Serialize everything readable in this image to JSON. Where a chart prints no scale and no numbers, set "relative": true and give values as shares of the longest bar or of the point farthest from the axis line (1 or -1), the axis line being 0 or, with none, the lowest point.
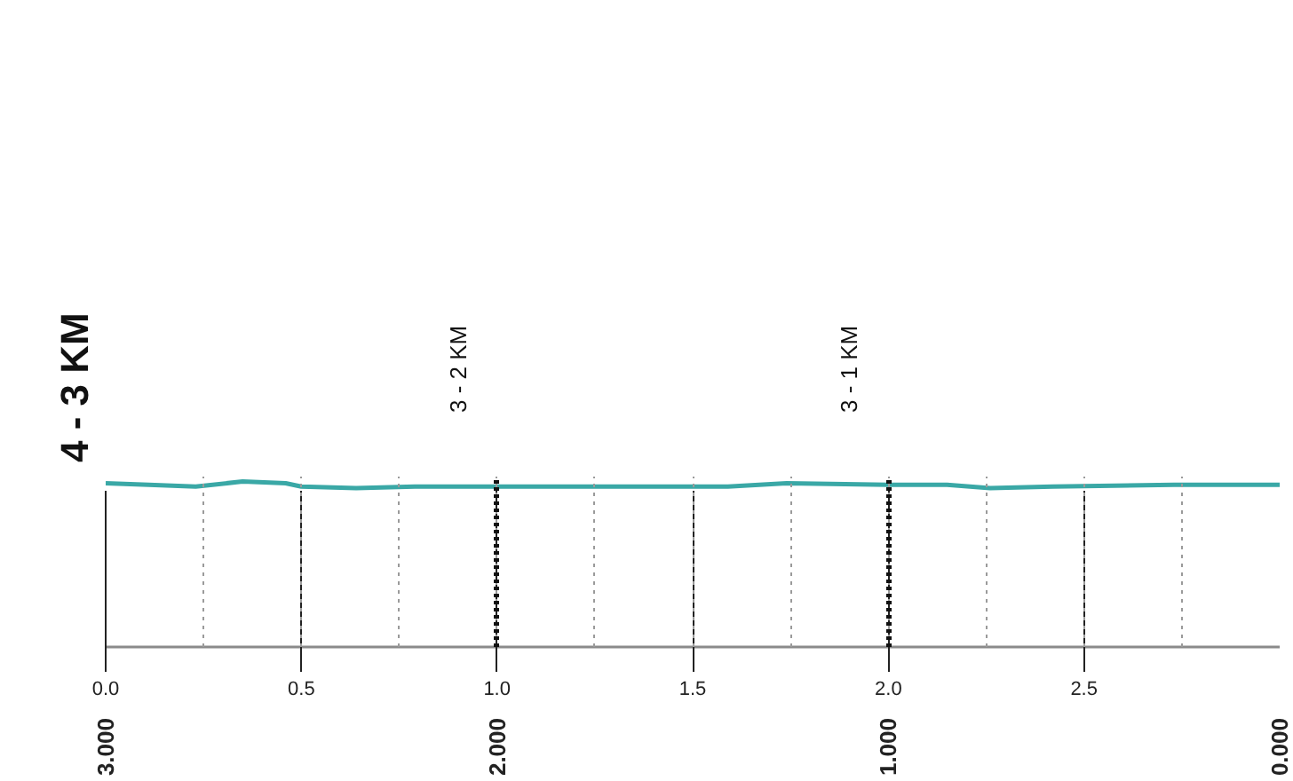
{
  "chart_data": {
    "type": "line",
    "title": "4 - 3 KM",
    "relative": true,
    "x": [
      0,
      0.11,
      0.23,
      0.35,
      0.46,
      0.5,
      0.64,
      0.79,
      1.0,
      1.45,
      1.59,
      1.74,
      2.0,
      2.15,
      2.26,
      2.42,
      2.73,
      3.0
    ],
    "values": [
      0.99,
      0.98,
      0.97,
      1.0,
      0.99,
      0.97,
      0.96,
      0.97,
      0.97,
      0.97,
      0.97,
      0.99,
      0.98,
      0.98,
      0.96,
      0.97,
      0.98,
      0.98
    ],
    "color": "#3aa8a6",
    "xlim": [
      0,
      3
    ],
    "xticks": [
      {
        "value": 0,
        "label": "0.0"
      },
      {
        "value": 0.25,
        "label": null
      },
      {
        "value": 0.5,
        "label": "0.5"
      },
      {
        "value": 0.75,
        "label": null
      },
      {
        "value": 1,
        "label": "1.0"
      },
      {
        "value": 1.25,
        "label": null
      },
      {
        "value": 1.5,
        "label": "1.5"
      },
      {
        "value": 1.75,
        "label": null
      },
      {
        "value": 2,
        "label": "2.0"
      },
      {
        "value": 2.25,
        "label": null
      },
      {
        "value": 2.5,
        "label": "2.5"
      },
      {
        "value": 2.75,
        "label": null
      }
    ],
    "x2lim": [
      3,
      0
    ],
    "x2ticks": [
      {
        "value": 3,
        "label": "3.000"
      },
      {
        "value": 2,
        "label": "2.000"
      },
      {
        "value": 1,
        "label": "1.000"
      },
      {
        "value": 0,
        "label": "0.000"
      }
    ],
    "grid": "x",
    "annotations": [
      "3 - 2 KM",
      "3 - 1 KM"
    ]
  }
}
